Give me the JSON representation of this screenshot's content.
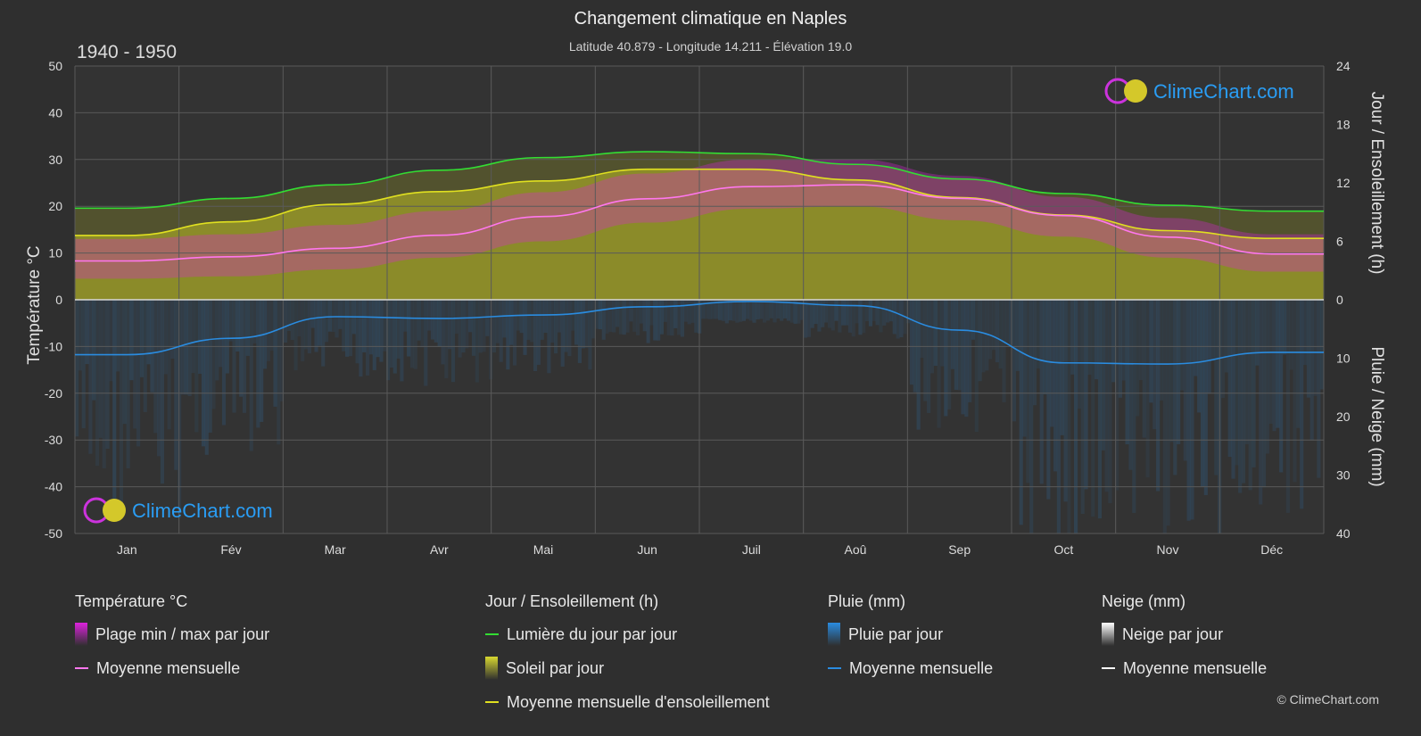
{
  "header": {
    "title": "Changement climatique en Naples",
    "subtitle": "Latitude 40.879 - Longitude 14.211 - Élévation 19.0",
    "period": "1940 - 1950"
  },
  "watermark": {
    "text": "ClimeChart.com"
  },
  "copyright": "© ClimeChart.com",
  "colors": {
    "background": "#2f2f2f",
    "daylight": "#33dd33",
    "sunshine_mean": "#e0e020",
    "sunshine_fill": "#9a9a28",
    "temp_range": "#dd22dd",
    "temp_mean": "#ff77ee",
    "rain": "#2a8ce0",
    "rain_mean": "#2a8ce0",
    "snow": "#ffffff",
    "brand_blue": "#2a9df4"
  },
  "legend": [
    {
      "heading": "Température °C",
      "items": [
        {
          "type": "box",
          "icon": "temp-range-swatch",
          "color": "#dd22dd",
          "label": "Plage min / max par jour"
        },
        {
          "type": "line",
          "icon": "temp-mean-line",
          "color": "#ff77ee",
          "label": "Moyenne mensuelle"
        }
      ]
    },
    {
      "heading": "Jour / Ensoleillement (h)",
      "items": [
        {
          "type": "line",
          "icon": "daylight-line",
          "color": "#33dd33",
          "label": "Lumière du jour par jour"
        },
        {
          "type": "box",
          "icon": "sunshine-swatch",
          "color": "#d8d830",
          "label": "Soleil par jour"
        },
        {
          "type": "line",
          "icon": "sunshine-mean-line",
          "color": "#e0e020",
          "label": "Moyenne mensuelle d'ensoleillement"
        }
      ]
    },
    {
      "heading": "Pluie (mm)",
      "items": [
        {
          "type": "box",
          "icon": "rain-swatch",
          "color": "#2a8ce0",
          "label": "Pluie par jour"
        },
        {
          "type": "line",
          "icon": "rain-mean-line",
          "color": "#2a8ce0",
          "label": "Moyenne mensuelle"
        }
      ]
    },
    {
      "heading": "Neige (mm)",
      "items": [
        {
          "type": "box",
          "icon": "snow-swatch",
          "color": "#ffffff",
          "label": "Neige par jour"
        },
        {
          "type": "line",
          "icon": "snow-mean-line",
          "color": "#ffffff",
          "label": "Moyenne mensuelle"
        }
      ]
    }
  ],
  "chart_data": {
    "type": "line",
    "categories": [
      "Jan",
      "Fév",
      "Mar",
      "Avr",
      "Mai",
      "Jun",
      "Juil",
      "Aoû",
      "Sep",
      "Oct",
      "Nov",
      "Déc"
    ],
    "left_axis": {
      "label": "Température °C",
      "ylim": [
        -50,
        50
      ],
      "ticks": [
        50,
        40,
        30,
        20,
        10,
        0,
        -10,
        -20,
        -30,
        -40,
        -50
      ]
    },
    "right_axis_top": {
      "label": "Jour / Ensoleillement (h)",
      "ylim": [
        0,
        24
      ],
      "ticks": [
        24,
        18,
        12,
        6,
        0
      ]
    },
    "right_axis_bottom": {
      "label": "Pluie / Neige (mm)",
      "ylim": [
        0,
        40
      ],
      "ticks": [
        0,
        10,
        20,
        30,
        40
      ]
    },
    "grid": true,
    "series": [
      {
        "name": "Lumière du jour par jour",
        "axis": "hours",
        "values": [
          9.4,
          10.4,
          11.8,
          13.3,
          14.6,
          15.2,
          15.0,
          13.9,
          12.4,
          10.9,
          9.7,
          9.1
        ]
      },
      {
        "name": "Moyenne mensuelle d'ensoleillement",
        "axis": "hours",
        "values": [
          6.6,
          8.0,
          9.8,
          11.1,
          12.2,
          13.4,
          13.4,
          12.3,
          10.5,
          8.7,
          7.1,
          6.3
        ]
      },
      {
        "name": "Température moyenne mensuelle",
        "axis": "temperature",
        "values": [
          8.3,
          9.2,
          11.0,
          13.8,
          17.8,
          21.6,
          24.2,
          24.6,
          21.7,
          18.0,
          13.4,
          9.8
        ]
      },
      {
        "name": "Pluie moyenne mensuelle",
        "axis": "rain_mm",
        "values": [
          9.4,
          6.6,
          2.9,
          3.2,
          2.6,
          1.2,
          0.3,
          1.0,
          5.2,
          10.8,
          11.0,
          9.0
        ]
      },
      {
        "name": "Neige moyenne mensuelle",
        "axis": "rain_mm",
        "values": [
          0,
          0,
          0,
          0,
          0,
          0,
          0,
          0,
          0,
          0,
          0,
          0
        ]
      }
    ],
    "temp_range": {
      "min": [
        4.5,
        5.0,
        6.5,
        9.0,
        12.5,
        16.5,
        19.5,
        20.0,
        17.0,
        13.5,
        9.0,
        6.0
      ],
      "max": [
        13.0,
        14.0,
        16.0,
        19.0,
        23.0,
        27.0,
        30.0,
        30.0,
        26.5,
        22.0,
        17.5,
        14.0
      ]
    }
  }
}
